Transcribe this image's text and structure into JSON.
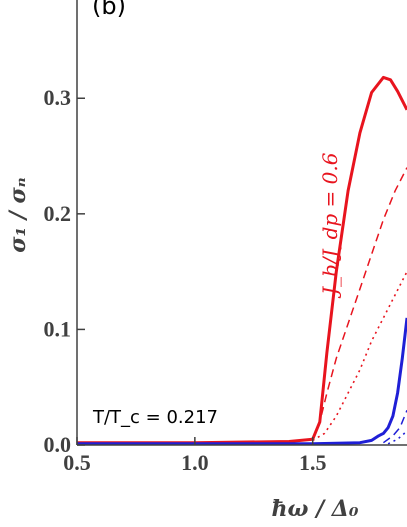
{
  "panel_label": "(b)",
  "annotations": {
    "temperature": "T/T_c = 0.217",
    "current_ratio": "J_b/J_dp = 0.6"
  },
  "colors": {
    "red": "#e8141e",
    "blue": "#1f1fd6",
    "axis": "#404040"
  },
  "chart_data": {
    "type": "line",
    "xlabel": "ħω / Δ₀",
    "ylabel": "σ₁ / σₙ",
    "xlim": [
      0.5,
      1.9
    ],
    "ylim": [
      0,
      0.385
    ],
    "x_ticks": [
      0.5,
      1.0,
      1.5
    ],
    "x_tick_labels": [
      "0.5",
      "1.0",
      "1.5"
    ],
    "y_ticks": [
      0.0,
      0.1,
      0.2,
      0.3
    ],
    "y_tick_labels": [
      "0.0",
      "0.1",
      "0.2",
      "0.3"
    ],
    "grid": false,
    "series": [
      {
        "color": "red",
        "style": "solid",
        "x": [
          0.5,
          1.0,
          1.4,
          1.5,
          1.53,
          1.56,
          1.6,
          1.65,
          1.7,
          1.75,
          1.8,
          1.83,
          1.86,
          1.9
        ],
        "y": [
          0.002,
          0.002,
          0.003,
          0.005,
          0.02,
          0.08,
          0.15,
          0.22,
          0.27,
          0.305,
          0.318,
          0.316,
          0.306,
          0.29
        ]
      },
      {
        "color": "red",
        "style": "dashed",
        "x": [
          1.5,
          1.53,
          1.56,
          1.6,
          1.65,
          1.7,
          1.75,
          1.8,
          1.85,
          1.9
        ],
        "y": [
          0.005,
          0.02,
          0.045,
          0.075,
          0.105,
          0.135,
          0.165,
          0.195,
          0.22,
          0.24
        ]
      },
      {
        "color": "red",
        "style": "dotted",
        "x": [
          1.5,
          1.55,
          1.6,
          1.65,
          1.7,
          1.75,
          1.8,
          1.85,
          1.9
        ],
        "y": [
          0.004,
          0.01,
          0.025,
          0.045,
          0.065,
          0.09,
          0.11,
          0.13,
          0.15
        ]
      },
      {
        "color": "blue",
        "style": "solid",
        "x": [
          0.5,
          1.0,
          1.5,
          1.7,
          1.75,
          1.78,
          1.8,
          1.82,
          1.84,
          1.86,
          1.88,
          1.9
        ],
        "y": [
          0.001,
          0.001,
          0.001,
          0.002,
          0.004,
          0.008,
          0.01,
          0.015,
          0.025,
          0.045,
          0.075,
          0.11
        ]
      },
      {
        "color": "blue",
        "style": "dashed",
        "x": [
          1.8,
          1.84,
          1.87,
          1.9
        ],
        "y": [
          0.002,
          0.008,
          0.015,
          0.03
        ]
      },
      {
        "color": "blue",
        "style": "dotted",
        "x": [
          1.82,
          1.86,
          1.9
        ],
        "y": [
          0.001,
          0.005,
          0.012
        ]
      }
    ]
  }
}
